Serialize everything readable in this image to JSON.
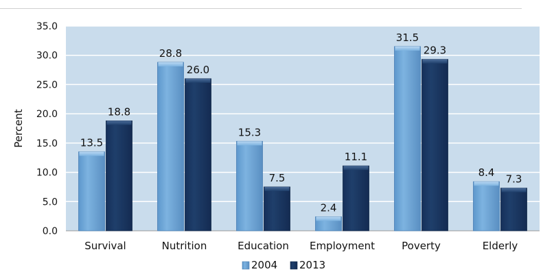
{
  "chart_data": {
    "type": "bar",
    "categories": [
      "Survival",
      "Nutrition",
      "Education",
      "Employment",
      "Poverty",
      "Elderly"
    ],
    "series": [
      {
        "name": "2004",
        "values": [
          13.5,
          28.8,
          15.3,
          2.4,
          31.5,
          8.4
        ],
        "labels": [
          "13.5",
          "28.8",
          "15.3",
          "2.4",
          "31.5",
          "8.4"
        ]
      },
      {
        "name": "2013",
        "values": [
          18.8,
          26.0,
          7.5,
          11.1,
          29.3,
          7.3
        ],
        "labels": [
          "18.8",
          "26.0",
          "7.5",
          "11.1",
          "29.3",
          "7.3"
        ]
      }
    ],
    "ylabel": "Percent",
    "xlabel": "",
    "title": "",
    "ylim": [
      0,
      35
    ],
    "yticks": [
      "0.0",
      "5.0",
      "10.0",
      "15.0",
      "20.0",
      "25.0",
      "30.0",
      "35.0"
    ],
    "grid": true,
    "legend": "bottom-center",
    "colors": {
      "series_2004": "#7db3e0",
      "series_2013": "#1f3f6b",
      "plot_background": "#c9dcec",
      "gridline": "#ffffff"
    }
  }
}
